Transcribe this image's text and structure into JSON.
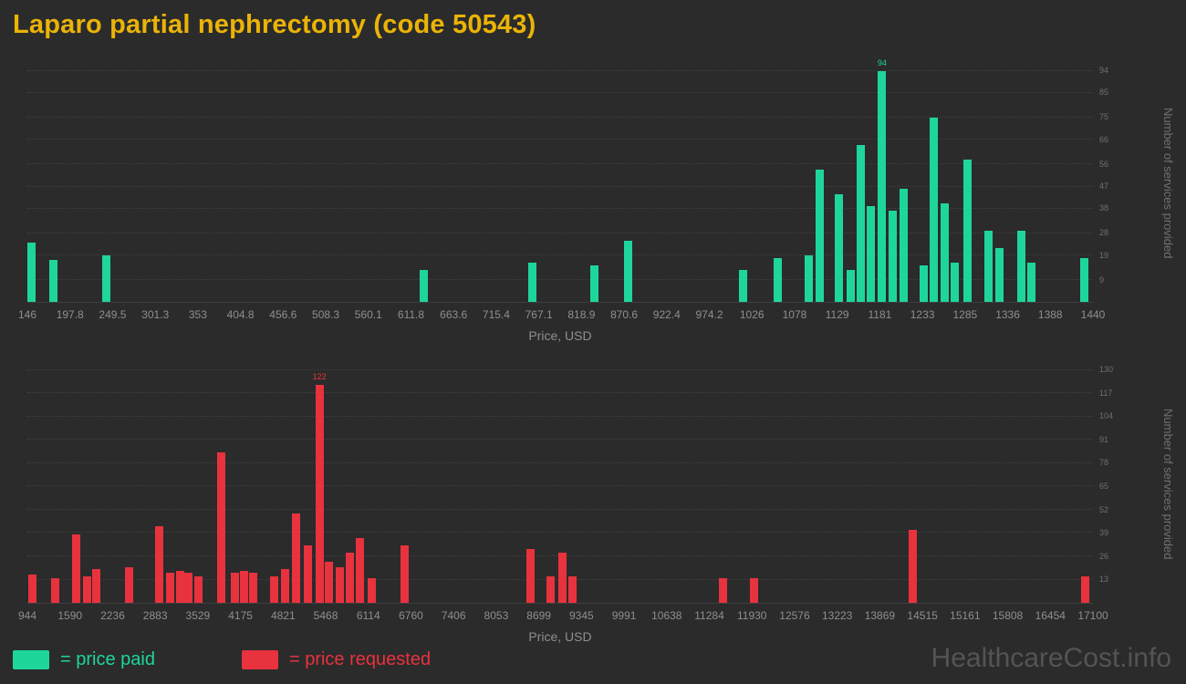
{
  "page": {
    "title": "Laparo partial nephrectomy (code 50543)",
    "watermark": "HealthcareCost.info"
  },
  "legend": {
    "paid": "= price paid",
    "requested": "= price requested"
  },
  "colors": {
    "background": "#2b2b2b",
    "paid": "#1ed69c",
    "requested": "#e8323e",
    "title": "#eab308",
    "axis_text": "#8f8f8f",
    "tick_text": "#707070",
    "watermark": "#545454"
  },
  "chart_data": [
    {
      "type": "bar",
      "series_name": "price paid",
      "color_key": "paid",
      "xlabel": "Price, USD",
      "ylabel": "Number of services provided",
      "x_min": 146,
      "x_max": 1440,
      "y_max": 97,
      "x_ticks": [
        "146",
        "197.8",
        "249.5",
        "301.3",
        "353",
        "404.8",
        "456.6",
        "508.3",
        "560.1",
        "611.8",
        "663.6",
        "715.4",
        "767.1",
        "818.9",
        "870.6",
        "922.4",
        "974.2",
        "1026",
        "1078",
        "1129",
        "1181",
        "1233",
        "1285",
        "1336",
        "1388",
        "1440"
      ],
      "y_ticks": [
        9,
        19,
        28,
        38,
        47,
        56,
        66,
        75,
        85,
        94
      ],
      "bars": [
        {
          "x": 146,
          "v": 24
        },
        {
          "x": 173,
          "v": 17
        },
        {
          "x": 237,
          "v": 19
        },
        {
          "x": 622,
          "v": 13
        },
        {
          "x": 754,
          "v": 16
        },
        {
          "x": 830,
          "v": 15
        },
        {
          "x": 871,
          "v": 25
        },
        {
          "x": 1010,
          "v": 13
        },
        {
          "x": 1052,
          "v": 18
        },
        {
          "x": 1090,
          "v": 19
        },
        {
          "x": 1103,
          "v": 54
        },
        {
          "x": 1126,
          "v": 44
        },
        {
          "x": 1141,
          "v": 13
        },
        {
          "x": 1153,
          "v": 64
        },
        {
          "x": 1165,
          "v": 39
        },
        {
          "x": 1179,
          "v": 94,
          "label": "94"
        },
        {
          "x": 1192,
          "v": 37
        },
        {
          "x": 1205,
          "v": 46
        },
        {
          "x": 1229,
          "v": 15
        },
        {
          "x": 1242,
          "v": 75
        },
        {
          "x": 1255,
          "v": 40
        },
        {
          "x": 1267,
          "v": 16
        },
        {
          "x": 1283,
          "v": 58
        },
        {
          "x": 1308,
          "v": 29
        },
        {
          "x": 1321,
          "v": 22
        },
        {
          "x": 1348,
          "v": 29
        },
        {
          "x": 1360,
          "v": 16
        },
        {
          "x": 1425,
          "v": 18
        }
      ]
    },
    {
      "type": "bar",
      "series_name": "price requested",
      "color_key": "requested",
      "xlabel": "Price, USD",
      "ylabel": "Number of services provided",
      "x_min": 944,
      "x_max": 17100,
      "y_max": 133,
      "x_ticks": [
        "944",
        "1590",
        "2236",
        "2883",
        "3529",
        "4175",
        "4821",
        "5468",
        "6114",
        "6760",
        "7406",
        "8053",
        "8699",
        "9345",
        "9991",
        "10638",
        "11284",
        "11930",
        "12576",
        "13223",
        "13869",
        "14515",
        "15161",
        "15808",
        "16454",
        "17100"
      ],
      "y_ticks": [
        13,
        26,
        39,
        52,
        65,
        78,
        91,
        104,
        117,
        130
      ],
      "bars": [
        {
          "x": 960,
          "v": 16
        },
        {
          "x": 1300,
          "v": 14
        },
        {
          "x": 1620,
          "v": 38
        },
        {
          "x": 1790,
          "v": 15
        },
        {
          "x": 1930,
          "v": 19
        },
        {
          "x": 2430,
          "v": 20
        },
        {
          "x": 2875,
          "v": 43
        },
        {
          "x": 3050,
          "v": 17
        },
        {
          "x": 3200,
          "v": 18
        },
        {
          "x": 3330,
          "v": 17
        },
        {
          "x": 3470,
          "v": 15
        },
        {
          "x": 3820,
          "v": 84
        },
        {
          "x": 4030,
          "v": 17
        },
        {
          "x": 4170,
          "v": 18
        },
        {
          "x": 4300,
          "v": 17
        },
        {
          "x": 4620,
          "v": 15
        },
        {
          "x": 4790,
          "v": 19
        },
        {
          "x": 4960,
          "v": 50
        },
        {
          "x": 5140,
          "v": 32
        },
        {
          "x": 5310,
          "v": 122,
          "label": "122"
        },
        {
          "x": 5460,
          "v": 23
        },
        {
          "x": 5620,
          "v": 20
        },
        {
          "x": 5770,
          "v": 28
        },
        {
          "x": 5930,
          "v": 36
        },
        {
          "x": 6110,
          "v": 14
        },
        {
          "x": 6600,
          "v": 32
        },
        {
          "x": 8510,
          "v": 30
        },
        {
          "x": 8820,
          "v": 15
        },
        {
          "x": 8990,
          "v": 28
        },
        {
          "x": 9140,
          "v": 15
        },
        {
          "x": 11430,
          "v": 14
        },
        {
          "x": 11900,
          "v": 14
        },
        {
          "x": 14310,
          "v": 41
        },
        {
          "x": 16920,
          "v": 15
        }
      ]
    }
  ]
}
